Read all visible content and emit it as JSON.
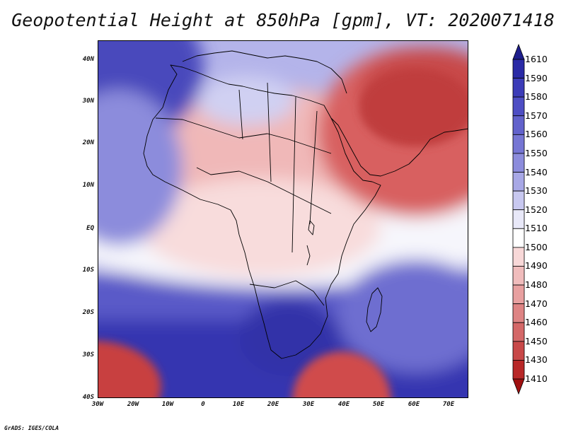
{
  "title": "Geopotential Height at 850hPa [gpm], VT: 2020071418",
  "map": {
    "field": "Geopotential Height",
    "level": "850hPa",
    "units": "gpm",
    "valid_time": "2020071418",
    "lon_range": [
      -30,
      76
    ],
    "lat_range": [
      -40,
      45
    ],
    "x_tick_labels": [
      "30W",
      "20W",
      "10W",
      "0",
      "10E",
      "20E",
      "30E",
      "40E",
      "50E",
      "60E",
      "70E"
    ],
    "y_tick_labels": [
      "40N",
      "30N",
      "20N",
      "10N",
      "EQ",
      "10S",
      "20S",
      "30S",
      "40S"
    ]
  },
  "legend": {
    "labels": [
      "1610",
      "1590",
      "1580",
      "1570",
      "1560",
      "1550",
      "1540",
      "1530",
      "1520",
      "1510",
      "1500",
      "1490",
      "1480",
      "1470",
      "1460",
      "1450",
      "1430",
      "1410"
    ],
    "colors": [
      "#1e1e8c",
      "#2a2aa6",
      "#3c3cb8",
      "#4e4ec4",
      "#6262cc",
      "#7676d4",
      "#8c8cdc",
      "#a8a8e6",
      "#c8c8f0",
      "#e8e8f8",
      "#ffffff",
      "#f8d8d8",
      "#f0bcbc",
      "#e8a0a0",
      "#de8484",
      "#d46868",
      "#c84848",
      "#b82828",
      "#a01010"
    ]
  },
  "credit": "GrADS: IGES/COLA"
}
